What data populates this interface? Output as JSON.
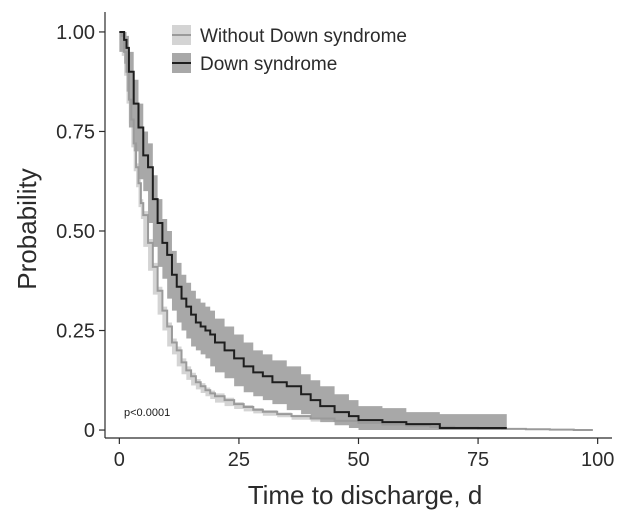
{
  "chart_data": {
    "type": "line",
    "xlabel": "Time to discharge, d",
    "ylabel": "Probability",
    "xlim": [
      -3,
      103
    ],
    "ylim": [
      -0.02,
      1.03
    ],
    "x_ticks": [
      0,
      25,
      50,
      75,
      100
    ],
    "x_tick_labels": [
      "0",
      "25",
      "50",
      "75",
      "100"
    ],
    "y_ticks": [
      0,
      0.25,
      0.5,
      0.75,
      1.0
    ],
    "y_tick_labels": [
      "0",
      "0.25",
      "0.50",
      "0.75",
      "1.00"
    ],
    "grid": false,
    "legend_position": "top-left",
    "annotation": "p<0.0001",
    "series": [
      {
        "name": "Without Down syndrome",
        "line_color": "#9a9a9a",
        "band_color": "#d4d4d4",
        "x": [
          0,
          0.5,
          1,
          1.5,
          2,
          2.5,
          3,
          3.5,
          4,
          4.5,
          5,
          6,
          7,
          8,
          9,
          10,
          11,
          12,
          13,
          14,
          15,
          16,
          17,
          18,
          19,
          20,
          22,
          24,
          26,
          28,
          30,
          33,
          36,
          40,
          45,
          50,
          55,
          60,
          65,
          70,
          75,
          80,
          85,
          90,
          95,
          99
        ],
        "y": [
          1.0,
          0.99,
          0.95,
          0.9,
          0.83,
          0.78,
          0.72,
          0.66,
          0.62,
          0.57,
          0.54,
          0.47,
          0.41,
          0.35,
          0.3,
          0.26,
          0.22,
          0.2,
          0.17,
          0.15,
          0.135,
          0.12,
          0.11,
          0.1,
          0.092,
          0.085,
          0.075,
          0.065,
          0.058,
          0.051,
          0.046,
          0.04,
          0.035,
          0.029,
          0.023,
          0.018,
          0.014,
          0.011,
          0.008,
          0.006,
          0.004,
          0.003,
          0.002,
          0.001,
          0.0,
          0.0
        ],
        "lower": [
          0.99,
          0.98,
          0.94,
          0.89,
          0.82,
          0.77,
          0.71,
          0.65,
          0.61,
          0.56,
          0.53,
          0.46,
          0.4,
          0.34,
          0.29,
          0.25,
          0.21,
          0.19,
          0.16,
          0.14,
          0.126,
          0.112,
          0.102,
          0.093,
          0.085,
          0.078,
          0.069,
          0.06,
          0.053,
          0.047,
          0.042,
          0.036,
          0.032,
          0.026,
          0.021,
          0.016,
          0.012,
          0.009,
          0.007,
          0.005,
          0.003,
          0.002,
          0.001,
          0.0,
          0.0,
          0.0
        ],
        "upper": [
          1.0,
          1.0,
          0.96,
          0.91,
          0.84,
          0.79,
          0.73,
          0.67,
          0.63,
          0.58,
          0.55,
          0.48,
          0.42,
          0.36,
          0.31,
          0.27,
          0.23,
          0.21,
          0.18,
          0.16,
          0.144,
          0.128,
          0.118,
          0.107,
          0.099,
          0.092,
          0.081,
          0.07,
          0.063,
          0.055,
          0.05,
          0.044,
          0.038,
          0.032,
          0.025,
          0.02,
          0.016,
          0.013,
          0.009,
          0.007,
          0.005,
          0.004,
          0.003,
          0.002,
          0.001,
          0.001
        ]
      },
      {
        "name": "Down syndrome",
        "line_color": "#1e1e1e",
        "band_color": "#a8a8a8",
        "x": [
          0,
          1,
          1.5,
          2,
          3,
          4,
          5,
          6,
          7,
          8,
          9,
          10,
          11,
          12,
          13,
          14,
          15,
          16,
          17,
          18,
          19,
          20,
          22,
          24,
          26,
          28,
          30,
          32,
          35,
          38,
          40,
          42,
          45,
          48,
          50,
          55,
          60,
          67,
          70,
          75,
          80,
          81
        ],
        "y": [
          1.0,
          0.98,
          0.96,
          0.9,
          0.82,
          0.76,
          0.69,
          0.66,
          0.58,
          0.52,
          0.47,
          0.44,
          0.39,
          0.36,
          0.33,
          0.31,
          0.29,
          0.27,
          0.26,
          0.25,
          0.24,
          0.22,
          0.2,
          0.18,
          0.16,
          0.145,
          0.135,
          0.12,
          0.11,
          0.09,
          0.075,
          0.06,
          0.045,
          0.035,
          0.025,
          0.02,
          0.015,
          0.005,
          0.005,
          0.005,
          0.005,
          0.005
        ],
        "lower": [
          0.97,
          0.95,
          0.92,
          0.85,
          0.76,
          0.7,
          0.63,
          0.6,
          0.52,
          0.46,
          0.41,
          0.38,
          0.33,
          0.3,
          0.27,
          0.25,
          0.23,
          0.21,
          0.2,
          0.19,
          0.18,
          0.16,
          0.145,
          0.13,
          0.11,
          0.095,
          0.085,
          0.075,
          0.065,
          0.05,
          0.04,
          0.03,
          0.02,
          0.012,
          0.005,
          0.0,
          0.0,
          0.0,
          0.0,
          0.0,
          0.0,
          0.0
        ],
        "upper": [
          1.0,
          1.0,
          0.99,
          0.95,
          0.88,
          0.82,
          0.75,
          0.72,
          0.64,
          0.58,
          0.53,
          0.5,
          0.45,
          0.42,
          0.39,
          0.37,
          0.35,
          0.33,
          0.32,
          0.31,
          0.3,
          0.28,
          0.26,
          0.24,
          0.22,
          0.2,
          0.19,
          0.175,
          0.16,
          0.14,
          0.125,
          0.11,
          0.09,
          0.075,
          0.06,
          0.055,
          0.045,
          0.04,
          0.04,
          0.04,
          0.04,
          0.04
        ]
      }
    ]
  }
}
